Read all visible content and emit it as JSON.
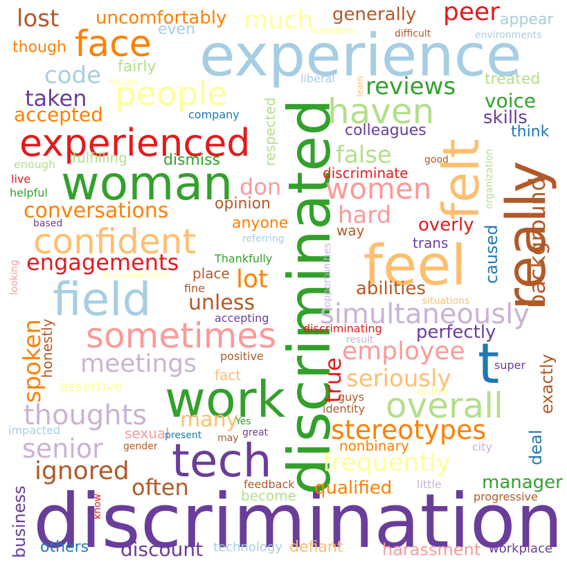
{
  "words": [
    {
      "text": "discrimination",
      "color": "#6a3d9a"
    },
    {
      "text": "discriminated",
      "color": "#33a02c"
    },
    {
      "text": "experience",
      "color": "#a6cee3"
    },
    {
      "text": "feel",
      "color": "#fdbf6f"
    },
    {
      "text": "really",
      "color": "#b15928"
    },
    {
      "text": "work",
      "color": "#33a02c"
    },
    {
      "text": "woman",
      "color": "#33a02c"
    },
    {
      "text": "tech",
      "color": "#6a3d9a"
    },
    {
      "text": "field",
      "color": "#a6cee3"
    },
    {
      "text": "felt",
      "color": "#fdbf6f"
    },
    {
      "text": "t",
      "color": "#1f78b4"
    },
    {
      "text": "experienced",
      "color": "#e31a1c"
    },
    {
      "text": "sometimes",
      "color": "#fb9a99"
    },
    {
      "text": "confident",
      "color": "#fdbf6f"
    },
    {
      "text": "face",
      "color": "#ff7f00"
    },
    {
      "text": "people",
      "color": "#ffff99"
    },
    {
      "text": "overall",
      "color": "#b2df8a"
    },
    {
      "text": "haven",
      "color": "#b2df8a"
    },
    {
      "text": "women",
      "color": "#fb9a99"
    },
    {
      "text": "simultaneously",
      "color": "#cab2d6"
    },
    {
      "text": "meetings",
      "color": "#cab2d6"
    },
    {
      "text": "thoughts",
      "color": "#cab2d6"
    },
    {
      "text": "stereotypes",
      "color": "#ff7f00"
    },
    {
      "text": "engagements",
      "color": "#e31a1c"
    },
    {
      "text": "conversations",
      "color": "#ff7f00"
    },
    {
      "text": "frequently",
      "color": "#ffff99"
    },
    {
      "text": "employee",
      "color": "#fb9a99"
    },
    {
      "text": "senior",
      "color": "#cab2d6"
    },
    {
      "text": "ignored",
      "color": "#b15928"
    },
    {
      "text": "spoken",
      "color": "#ff7f00"
    },
    {
      "text": "reviews",
      "color": "#33a02c"
    },
    {
      "text": "background",
      "color": "#b15928"
    },
    {
      "text": "seriously",
      "color": "#fdbf6f"
    },
    {
      "text": "peer",
      "color": "#e31a1c"
    },
    {
      "text": "much",
      "color": "#ffff99"
    },
    {
      "text": "lost",
      "color": "#b15928"
    },
    {
      "text": "code",
      "color": "#a6cee3"
    },
    {
      "text": "taken",
      "color": "#6a3d9a"
    },
    {
      "text": "hard",
      "color": "#fb9a99"
    },
    {
      "text": "false",
      "color": "#b2df8a"
    },
    {
      "text": "lot",
      "color": "#ff7f00"
    },
    {
      "text": "unless",
      "color": "#b15928"
    },
    {
      "text": "often",
      "color": "#b15928"
    },
    {
      "text": "true",
      "color": "#e31a1c"
    },
    {
      "text": "don",
      "color": "#fb9a99"
    },
    {
      "text": "many",
      "color": "#fdbf6f"
    },
    {
      "text": "voice",
      "color": "#33a02c"
    },
    {
      "text": "accepted",
      "color": "#ff7f00"
    },
    {
      "text": "uncomfortably",
      "color": "#ff7f00"
    },
    {
      "text": "generally",
      "color": "#b15928"
    },
    {
      "text": "qualified",
      "color": "#ff7f00"
    },
    {
      "text": "discount",
      "color": "#6a3d9a"
    },
    {
      "text": "manager",
      "color": "#33a02c"
    },
    {
      "text": "harassment",
      "color": "#fb9a99"
    },
    {
      "text": "perfectly",
      "color": "#6a3d9a"
    },
    {
      "text": "overly",
      "color": "#e31a1c"
    },
    {
      "text": "abilities",
      "color": "#b15928"
    },
    {
      "text": "skills",
      "color": "#6a3d9a"
    },
    {
      "text": "colleagues",
      "color": "#6a3d9a"
    },
    {
      "text": "discriminate",
      "color": "#e31a1c"
    },
    {
      "text": "opinion",
      "color": "#b15928"
    },
    {
      "text": "anyone",
      "color": "#ff7f00"
    },
    {
      "text": "caused",
      "color": "#1f78b4"
    },
    {
      "text": "exactly",
      "color": "#b15928"
    },
    {
      "text": "deal",
      "color": "#1f78b4"
    },
    {
      "text": "business",
      "color": "#6a3d9a"
    },
    {
      "text": "others",
      "color": "#1f78b4"
    },
    {
      "text": "fairly",
      "color": "#b2df8a"
    },
    {
      "text": "even",
      "color": "#a6cee3"
    },
    {
      "text": "though",
      "color": "#ff7f00"
    },
    {
      "text": "appear",
      "color": "#a6cee3"
    },
    {
      "text": "treated",
      "color": "#b2df8a"
    },
    {
      "text": "think",
      "color": "#1f78b4"
    },
    {
      "text": "dismiss",
      "color": "#33a02c"
    },
    {
      "text": "fulfilling",
      "color": "#b2df8a"
    },
    {
      "text": "respected",
      "color": "#b2df8a"
    },
    {
      "text": "place",
      "color": "#b15928"
    },
    {
      "text": "way",
      "color": "#b15928"
    },
    {
      "text": "trans",
      "color": "#6a3d9a"
    },
    {
      "text": "honestly",
      "color": "#b15928"
    },
    {
      "text": "fact",
      "color": "#fdbf6f"
    },
    {
      "text": "assertive",
      "color": "#ffff99"
    },
    {
      "text": "sexual",
      "color": "#fb9a99"
    },
    {
      "text": "become",
      "color": "#b2df8a"
    },
    {
      "text": "defiant",
      "color": "#fdbf6f"
    },
    {
      "text": "nonbinary",
      "color": "#ff7f00"
    },
    {
      "text": "workplace",
      "color": "#6a3d9a"
    },
    {
      "text": "technology",
      "color": "#a6cee3"
    },
    {
      "text": "company",
      "color": "#1f78b4"
    },
    {
      "text": "Thankfully",
      "color": "#33a02c"
    },
    {
      "text": "positive",
      "color": "#b15928"
    },
    {
      "text": "guys",
      "color": "#b15928"
    },
    {
      "text": "identity",
      "color": "#b15928"
    },
    {
      "text": "feedback",
      "color": "#b15928"
    },
    {
      "text": "progressive",
      "color": "#b15928"
    },
    {
      "text": "little",
      "color": "#cab2d6"
    },
    {
      "text": "city",
      "color": "#cab2d6"
    },
    {
      "text": "super",
      "color": "#6a3d9a"
    },
    {
      "text": "entire",
      "color": "#ffff99"
    },
    {
      "text": "result",
      "color": "#cab2d6"
    },
    {
      "text": "situations",
      "color": "#fdbf6f"
    },
    {
      "text": "discriminating",
      "color": "#e31a1c"
    },
    {
      "text": "accepting",
      "color": "#6a3d9a"
    },
    {
      "text": "fine",
      "color": "#b15928"
    },
    {
      "text": "live",
      "color": "#e31a1c"
    },
    {
      "text": "helpful",
      "color": "#33a02c"
    },
    {
      "text": "enough",
      "color": "#b2df8a"
    },
    {
      "text": "based",
      "color": "#6a3d9a"
    },
    {
      "text": "liberal",
      "color": "#a6cee3"
    },
    {
      "text": "issues",
      "color": "#ffff99"
    },
    {
      "text": "difficult",
      "color": "#b15928"
    },
    {
      "text": "environments",
      "color": "#a6cee3"
    },
    {
      "text": "identities",
      "color": "#ffff99"
    },
    {
      "text": "good",
      "color": "#b15928"
    },
    {
      "text": "referring",
      "color": "#a6cee3"
    },
    {
      "text": "impacted",
      "color": "#a6cee3"
    },
    {
      "text": "present",
      "color": "#1f78b4"
    },
    {
      "text": "may",
      "color": "#b15928"
    },
    {
      "text": "great",
      "color": "#6a3d9a"
    },
    {
      "text": "Yes",
      "color": "#33a02c"
    },
    {
      "text": "gender",
      "color": "#b15928"
    },
    {
      "text": "know",
      "color": "#e31a1c"
    },
    {
      "text": "encouragement",
      "color": "#ffff99"
    },
    {
      "text": "looking",
      "color": "#fb9a99"
    },
    {
      "text": "opportunities",
      "color": "#cab2d6"
    },
    {
      "text": "organization",
      "color": "#b2df8a"
    },
    {
      "text": "learn",
      "color": "#fdbf6f"
    }
  ]
}
